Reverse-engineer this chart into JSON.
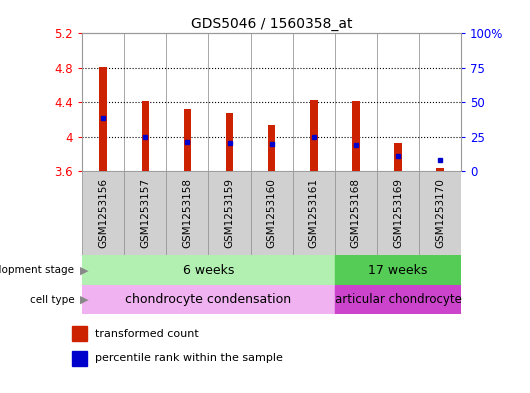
{
  "title": "GDS5046 / 1560358_at",
  "samples": [
    "GSM1253156",
    "GSM1253157",
    "GSM1253158",
    "GSM1253159",
    "GSM1253160",
    "GSM1253161",
    "GSM1253168",
    "GSM1253169",
    "GSM1253170"
  ],
  "bar_tops": [
    4.81,
    4.41,
    4.32,
    4.27,
    4.13,
    4.43,
    4.41,
    3.93,
    3.63
  ],
  "bar_bottom": 3.6,
  "blue_dot_values": [
    4.22,
    4.0,
    3.94,
    3.92,
    3.91,
    4.0,
    3.9,
    3.77,
    3.73
  ],
  "bar_color": "#cc2200",
  "blue_color": "#0000cc",
  "ylim_left": [
    3.6,
    5.2
  ],
  "ylim_right": [
    0,
    100
  ],
  "yticks_left": [
    3.6,
    4.0,
    4.4,
    4.8,
    5.2
  ],
  "yticks_right": [
    0,
    25,
    50,
    75,
    100
  ],
  "ytick_labels_left": [
    "3.6",
    "4",
    "4.4",
    "4.8",
    "5.2"
  ],
  "ytick_labels_right": [
    "0",
    "25",
    "50",
    "75",
    "100%"
  ],
  "grid_values": [
    4.0,
    4.4,
    4.8
  ],
  "dev_stage_labels": [
    "6 weeks",
    "17 weeks"
  ],
  "dev_stage_n": [
    6,
    3
  ],
  "cell_type_labels": [
    "chondrocyte condensation",
    "articular chondrocyte"
  ],
  "cell_type_n": [
    6,
    3
  ],
  "dev_stage_color1": "#b2f0b2",
  "dev_stage_color2": "#55cc55",
  "cell_type_color1": "#f0b2f0",
  "cell_type_color2": "#cc44cc",
  "legend_bar_label": "transformed count",
  "legend_dot_label": "percentile rank within the sample",
  "bar_width": 0.18,
  "sample_box_color": "#d0d0d0",
  "sample_box_edge": "#999999"
}
